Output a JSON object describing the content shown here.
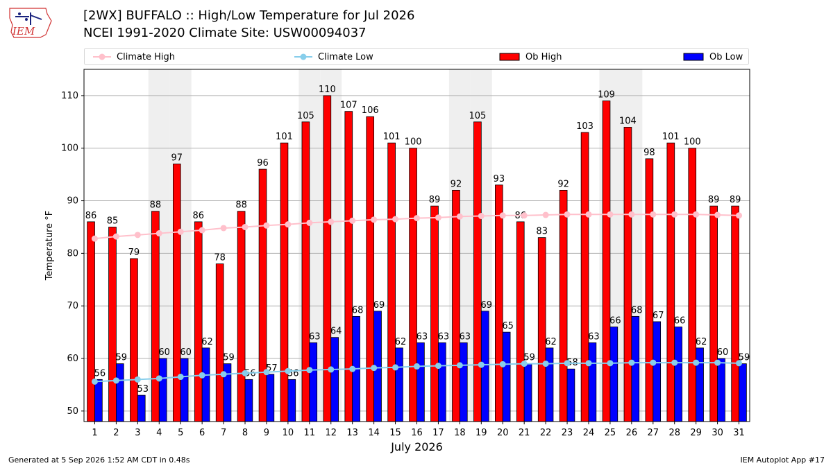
{
  "header": {
    "title_line1": "[2WX] BUFFALO :: High/Low Temperature for Jul 2026",
    "title_line2": "NCEI 1991-2020 Climate Site: USW00094037",
    "logo_text": "IEM"
  },
  "footer": {
    "left": "Generated at 5 Sep 2026 1:52 AM CDT in 0.48s",
    "right": "IEM Autoplot App #17"
  },
  "colors": {
    "ob_high": "#ff0000",
    "ob_low": "#0000ff",
    "climate_high": "#ffc0cb",
    "climate_low": "#87ceeb",
    "weekend_shade": "#efefef",
    "grid": "#b0b0b0"
  },
  "chart_data": {
    "type": "bar",
    "title": "[2WX] BUFFALO :: High/Low Temperature for Jul 2026",
    "subtitle": "NCEI 1991-2020 Climate Site: USW00094037",
    "xlabel": "July 2026",
    "ylabel": "Temperature °F",
    "ylim": [
      48,
      115
    ],
    "yticks": [
      50,
      60,
      70,
      80,
      90,
      100,
      110
    ],
    "grid": "y",
    "legend_position": "top",
    "categories": [
      "1",
      "2",
      "3",
      "4",
      "5",
      "6",
      "7",
      "8",
      "9",
      "10",
      "11",
      "12",
      "13",
      "14",
      "15",
      "16",
      "17",
      "18",
      "19",
      "20",
      "21",
      "22",
      "23",
      "24",
      "25",
      "26",
      "27",
      "28",
      "29",
      "30",
      "31"
    ],
    "shaded_days": [
      4,
      5,
      11,
      12,
      18,
      19,
      25,
      26
    ],
    "series": [
      {
        "name": "Ob High",
        "type": "bar",
        "values": [
          86,
          85,
          79,
          88,
          97,
          86,
          78,
          88,
          96,
          101,
          105,
          110,
          107,
          106,
          101,
          100,
          89,
          92,
          105,
          93,
          86,
          83,
          92,
          103,
          109,
          104,
          98,
          101,
          100,
          89,
          89
        ]
      },
      {
        "name": "Ob Low",
        "type": "bar",
        "values": [
          56,
          59,
          53,
          60,
          60,
          62,
          59,
          56,
          57,
          56,
          63,
          64,
          68,
          69,
          62,
          63,
          63,
          63,
          69,
          65,
          59,
          62,
          58,
          63,
          66,
          68,
          67,
          66,
          62,
          60,
          59
        ]
      },
      {
        "name": "Climate High",
        "type": "line",
        "values": [
          82.8,
          83.2,
          83.5,
          83.8,
          84.1,
          84.4,
          84.8,
          85.0,
          85.3,
          85.5,
          85.8,
          86.0,
          86.2,
          86.4,
          86.5,
          86.7,
          86.8,
          87.0,
          87.1,
          87.2,
          87.2,
          87.3,
          87.4,
          87.4,
          87.4,
          87.4,
          87.4,
          87.4,
          87.4,
          87.3,
          87.2
        ]
      },
      {
        "name": "Climate Low",
        "type": "line",
        "values": [
          55.6,
          55.8,
          56.0,
          56.2,
          56.5,
          56.8,
          57.0,
          57.2,
          57.4,
          57.6,
          57.8,
          57.9,
          58.0,
          58.2,
          58.3,
          58.5,
          58.6,
          58.7,
          58.8,
          58.9,
          59.0,
          59.0,
          59.1,
          59.1,
          59.1,
          59.2,
          59.2,
          59.2,
          59.2,
          59.2,
          59.1
        ]
      }
    ]
  }
}
